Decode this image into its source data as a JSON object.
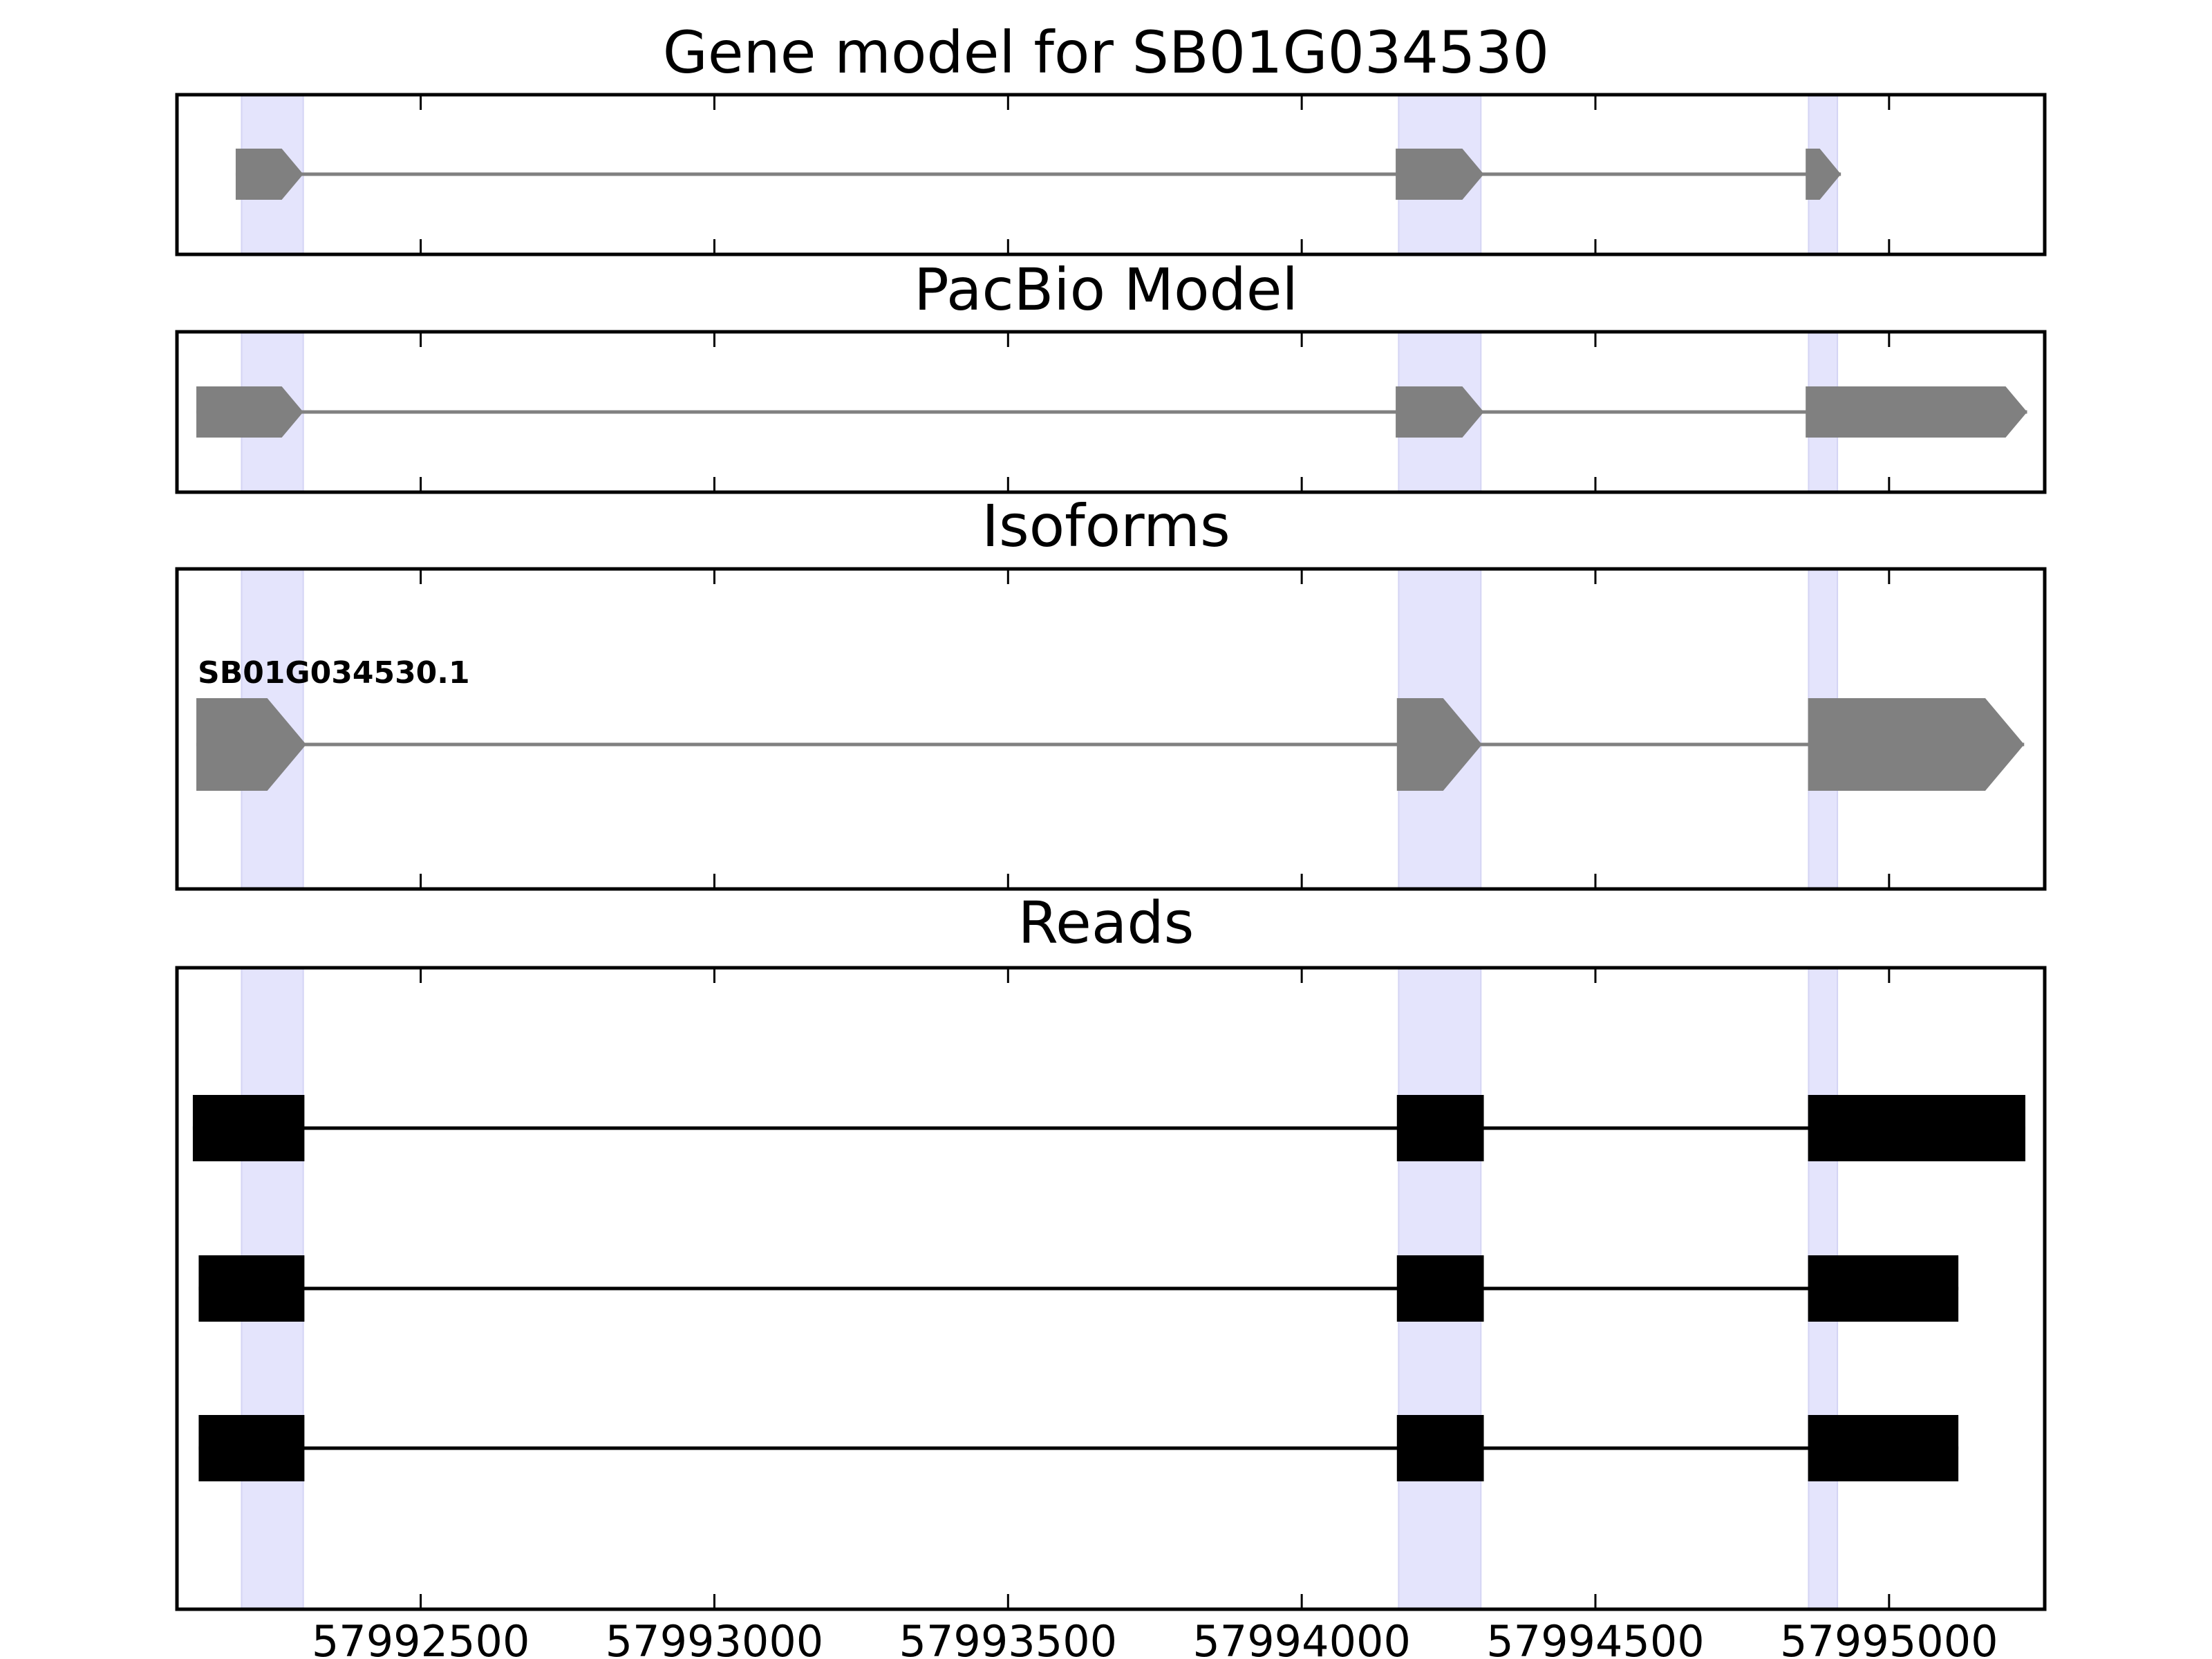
{
  "chart_data": {
    "type": "gene-model",
    "xlim": [
      57992085,
      57995265
    ],
    "x_ticks": [
      "57992500",
      "57993000",
      "57993500",
      "57994000",
      "57994500",
      "57995000"
    ],
    "x_tick_values": [
      57992500,
      57993000,
      57993500,
      57994000,
      57994500,
      57995000
    ],
    "highlight_regions": [
      {
        "start": 57992195,
        "end": 57992300
      },
      {
        "start": 57994165,
        "end": 57994305
      },
      {
        "start": 57994863,
        "end": 57994912
      }
    ],
    "colors": {
      "model": "#808080",
      "read": "#000000",
      "highlight": "#e4e4fc"
    },
    "panels": [
      {
        "id": "gene-model",
        "title": "Gene model for SB01G034530",
        "tracks": [
          {
            "label": "",
            "exons": [
              [
                57992185,
                57992300
              ],
              [
                57994160,
                57994310
              ],
              [
                57994858,
                57994918
              ]
            ]
          }
        ]
      },
      {
        "id": "pacbio-model",
        "title": "PacBio Model",
        "tracks": [
          {
            "label": "",
            "exons": [
              [
                57992118,
                57992300
              ],
              [
                57994160,
                57994310
              ],
              [
                57994858,
                57995235
              ]
            ]
          }
        ]
      },
      {
        "id": "isoforms",
        "title": "Isoforms",
        "tracks": [
          {
            "label": "SB01G034530.1",
            "exons": [
              [
                57992118,
                57992305
              ],
              [
                57994162,
                57994307
              ],
              [
                57994862,
                57995230
              ]
            ]
          }
        ]
      },
      {
        "id": "reads",
        "title": "Reads",
        "tracks": [
          {
            "label": "",
            "exons": [
              [
                57992112,
                57992302
              ],
              [
                57994162,
                57994310
              ],
              [
                57994862,
                57995232
              ]
            ]
          },
          {
            "label": "",
            "exons": [
              [
                57992122,
                57992302
              ],
              [
                57994162,
                57994310
              ],
              [
                57994862,
                57995118
              ]
            ]
          },
          {
            "label": "",
            "exons": [
              [
                57992122,
                57992302
              ],
              [
                57994162,
                57994310
              ],
              [
                57994862,
                57995118
              ]
            ]
          }
        ]
      }
    ]
  }
}
